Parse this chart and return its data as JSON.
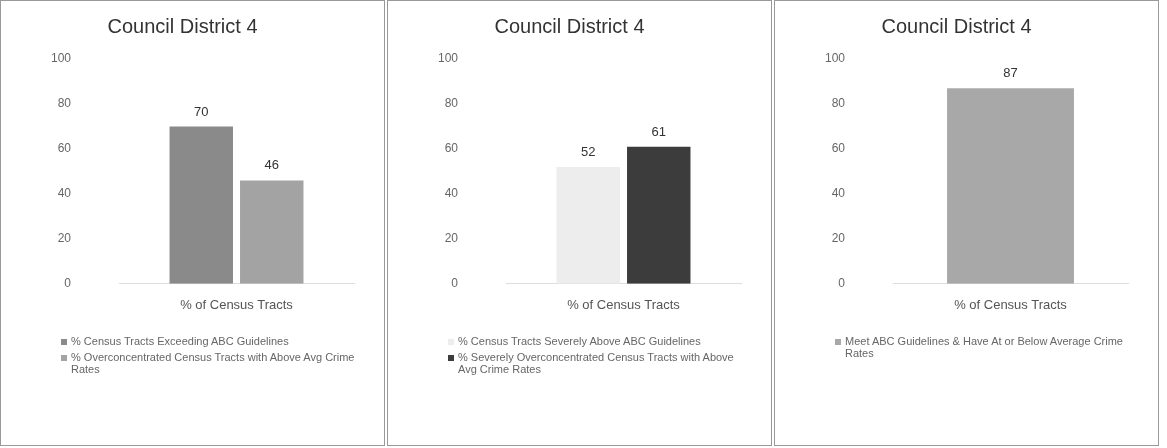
{
  "chart_data": [
    {
      "type": "bar",
      "title": "Council District 4",
      "categories": [
        "% of Census Tracts"
      ],
      "series": [
        {
          "name": "% Census Tracts Exceeding ABC Guidelines",
          "color": "#8a8a8a",
          "values": [
            70
          ]
        },
        {
          "name": "% Overconcentrated Census Tracts with Above Avg Crime Rates",
          "color": "#a3a3a3",
          "values": [
            46
          ]
        }
      ],
      "ylim": [
        0,
        100
      ],
      "yticks": [
        0,
        20,
        40,
        60,
        80,
        100
      ],
      "grid": false,
      "legend": "bottom",
      "data_labels": true
    },
    {
      "type": "bar",
      "title": "Council District 4",
      "categories": [
        "% of Census Tracts"
      ],
      "series": [
        {
          "name": "% Census Tracts Severely Above ABC Guidelines",
          "color": "#ededed",
          "values": [
            52
          ]
        },
        {
          "name": "% Severely Overconcentrated Census Tracts with Above Avg Crime Rates",
          "color": "#3c3c3c",
          "values": [
            61
          ]
        }
      ],
      "ylim": [
        0,
        100
      ],
      "yticks": [
        0,
        20,
        40,
        60,
        80,
        100
      ],
      "grid": false,
      "legend": "bottom",
      "data_labels": true
    },
    {
      "type": "bar",
      "title": "Council District 4",
      "categories": [
        "% of Census Tracts"
      ],
      "series": [
        {
          "name": "Meet ABC Guidelines & Have At or Below Average Crime Rates",
          "color": "#a8a8a8",
          "values": [
            87
          ]
        }
      ],
      "ylim": [
        0,
        100
      ],
      "yticks": [
        0,
        20,
        40,
        60,
        80,
        100
      ],
      "grid": false,
      "legend": "bottom",
      "data_labels": true
    }
  ]
}
